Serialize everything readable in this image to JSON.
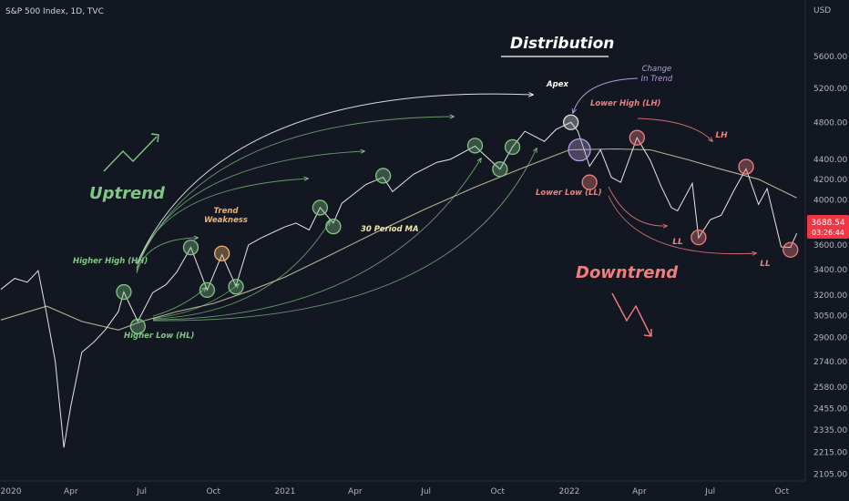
{
  "header": {
    "symbol": "S&P 500 Index, 1D, TVC",
    "currency": "USD"
  },
  "colors": {
    "background": "#131722",
    "up": "#e6e6e6",
    "down": "#ef5350",
    "ma": "#c9c2a0",
    "green": "#81c784",
    "red": "#ef7f7f",
    "purple": "#b39ddb",
    "orange": "#f0b26b",
    "white": "#ffffff"
  },
  "price_badge": {
    "price": "3688.54",
    "countdown": "03:26:44"
  },
  "chart_data": {
    "type": "line",
    "title": "Distribution",
    "xlabel": "",
    "ylabel": "",
    "scale": "log",
    "ylim": [
      2080,
      6100
    ],
    "xlim": [
      "2020-01-01",
      "2022-10-31"
    ],
    "grid": false,
    "x_ticks": [
      "2020",
      "Apr",
      "Jul",
      "Oct",
      "2021",
      "Apr",
      "Jul",
      "Oct",
      "2022",
      "Apr",
      "Jul",
      "Oct"
    ],
    "y_ticks": [
      5600,
      5200,
      4800,
      4400,
      4200,
      4000,
      3800,
      3600,
      3400,
      3200,
      3050,
      2900,
      2740,
      2580,
      2455,
      2335,
      2215,
      2105
    ],
    "series": [
      {
        "kind": "price",
        "x": [
          "2020-01-02",
          "2020-01-20",
          "2020-02-05",
          "2020-02-19",
          "2020-03-01",
          "2020-03-12",
          "2020-03-23",
          "2020-04-01",
          "2020-04-15",
          "2020-05-01",
          "2020-05-15",
          "2020-06-01",
          "2020-06-08",
          "2020-06-26",
          "2020-07-15",
          "2020-08-01",
          "2020-08-15",
          "2020-09-02",
          "2020-09-23",
          "2020-10-12",
          "2020-10-30",
          "2020-11-15",
          "2020-12-01",
          "2020-12-31",
          "2021-01-15",
          "2021-02-01",
          "2021-02-15",
          "2021-03-04",
          "2021-03-15",
          "2021-04-15",
          "2021-05-07",
          "2021-05-19",
          "2021-06-15",
          "2021-07-15",
          "2021-08-01",
          "2021-09-02",
          "2021-09-15",
          "2021-10-04",
          "2021-10-20",
          "2021-11-05",
          "2021-11-30",
          "2021-12-15",
          "2022-01-03",
          "2022-01-12",
          "2022-01-27",
          "2022-02-10",
          "2022-02-24",
          "2022-03-08",
          "2022-03-29",
          "2022-04-15",
          "2022-04-29",
          "2022-05-12",
          "2022-05-20",
          "2022-06-08",
          "2022-06-16",
          "2022-07-01",
          "2022-07-15",
          "2022-08-01",
          "2022-08-16",
          "2022-09-01",
          "2022-09-12",
          "2022-09-30",
          "2022-10-12",
          "2022-10-20"
        ],
        "y": [
          3245,
          3330,
          3300,
          3390,
          3060,
          2740,
          2240,
          2470,
          2800,
          2870,
          2950,
          3080,
          3225,
          3010,
          3220,
          3280,
          3380,
          3580,
          3240,
          3520,
          3270,
          3600,
          3660,
          3755,
          3790,
          3730,
          3930,
          3790,
          3970,
          4150,
          4220,
          4080,
          4250,
          4370,
          4400,
          4540,
          4440,
          4300,
          4530,
          4700,
          4590,
          4720,
          4800,
          4700,
          4330,
          4500,
          4220,
          4170,
          4630,
          4390,
          4130,
          3930,
          3900,
          4160,
          3660,
          3820,
          3860,
          4100,
          4305,
          3960,
          4110,
          3585,
          3580,
          3700
        ]
      },
      {
        "kind": "ma",
        "name": "30 Period MA",
        "x": [
          "2020-01-02",
          "2020-03-01",
          "2020-04-15",
          "2020-06-01",
          "2020-07-01",
          "2020-08-15",
          "2020-10-01",
          "2020-11-15",
          "2021-01-01",
          "2021-03-01",
          "2021-05-01",
          "2021-07-01",
          "2021-09-01",
          "2021-11-01",
          "2022-01-01",
          "2022-03-01",
          "2022-04-15",
          "2022-06-01",
          "2022-07-15",
          "2022-09-01",
          "2022-10-20"
        ],
        "y": [
          3020,
          3120,
          3010,
          2950,
          3010,
          3080,
          3140,
          3230,
          3340,
          3520,
          3720,
          3920,
          4120,
          4310,
          4500,
          4510,
          4500,
          4400,
          4300,
          4200,
          4020
        ]
      }
    ],
    "markers": [
      {
        "x": "2020-06-08",
        "y": 3225,
        "color": "#81c784"
      },
      {
        "x": "2020-06-26",
        "y": 2975,
        "color": "#81c784"
      },
      {
        "x": "2020-09-02",
        "y": 3580,
        "color": "#81c784"
      },
      {
        "x": "2020-09-23",
        "y": 3240,
        "color": "#81c784"
      },
      {
        "x": "2020-10-12",
        "y": 3530,
        "color": "#f0b26b"
      },
      {
        "x": "2020-10-30",
        "y": 3265,
        "color": "#81c784"
      },
      {
        "x": "2021-02-15",
        "y": 3930,
        "color": "#81c784"
      },
      {
        "x": "2021-03-04",
        "y": 3760,
        "color": "#81c784"
      },
      {
        "x": "2021-05-07",
        "y": 4235,
        "color": "#81c784"
      },
      {
        "x": "2021-09-02",
        "y": 4545,
        "color": "#81c784"
      },
      {
        "x": "2021-10-04",
        "y": 4300,
        "color": "#81c784"
      },
      {
        "x": "2021-10-20",
        "y": 4530,
        "color": "#81c784"
      },
      {
        "x": "2022-01-03",
        "y": 4800,
        "color": "#e0e0e0"
      },
      {
        "x": "2022-01-14",
        "y": 4500,
        "color": "#b39ddb"
      },
      {
        "x": "2022-01-27",
        "y": 4170,
        "color": "#ef7f7f"
      },
      {
        "x": "2022-03-29",
        "y": 4630,
        "color": "#ef7f7f"
      },
      {
        "x": "2022-06-16",
        "y": 3665,
        "color": "#ef7f7f"
      },
      {
        "x": "2022-08-16",
        "y": 4325,
        "color": "#ef7f7f"
      },
      {
        "x": "2022-10-12",
        "y": 3560,
        "color": "#ef7f7f"
      }
    ],
    "annotations": {
      "uptrend": "Uptrend",
      "downtrend": "Downtrend",
      "distribution": "Distribution",
      "higher_high": "Higher High (HH)",
      "higher_low": "Higher Low (HL)",
      "trend_weakness_1": "Trend",
      "trend_weakness_2": "Weakness",
      "ma_label": "30 Period MA",
      "apex": "Apex",
      "change_1": "Change",
      "change_2": "In Trend",
      "lower_high": "Lower High (LH)",
      "lower_low": "Lower Low (LL)",
      "lh": "LH",
      "ll_1": "LL",
      "ll_2": "LL"
    }
  }
}
